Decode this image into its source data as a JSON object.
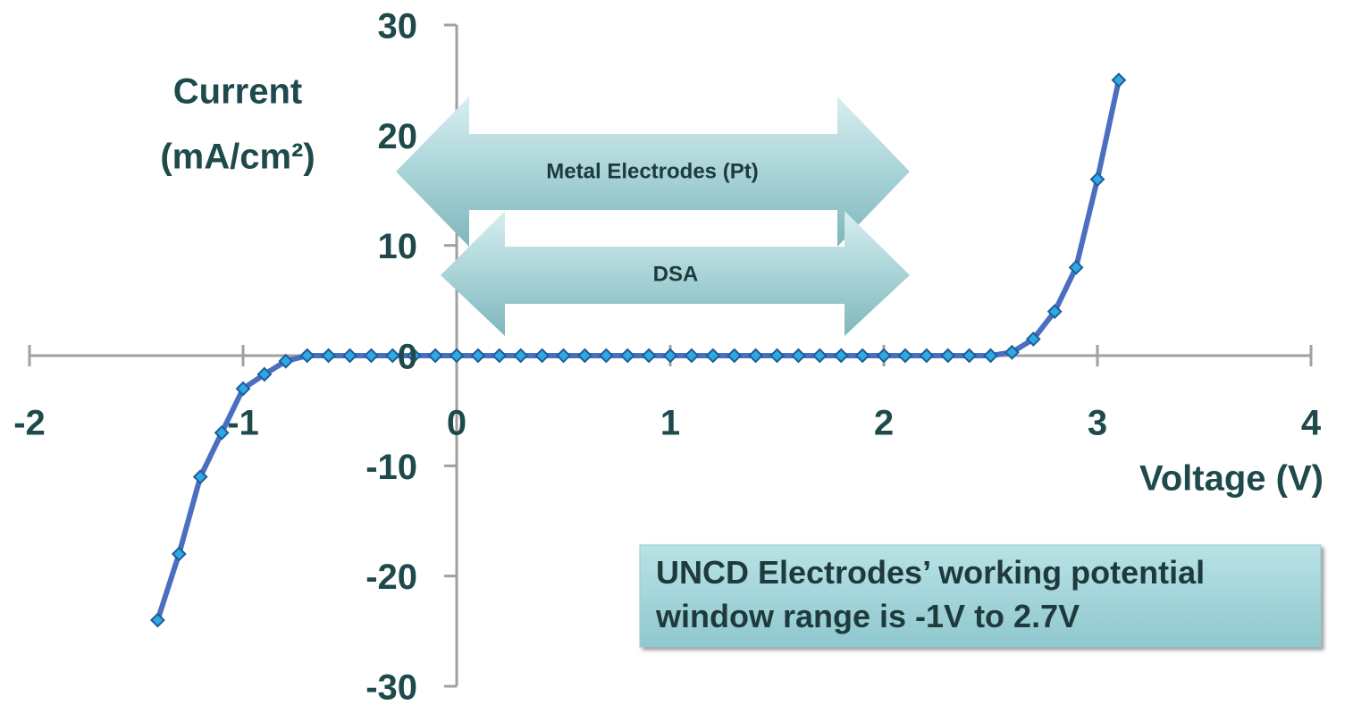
{
  "chart_data": {
    "type": "line",
    "xlabel": "Voltage (V)",
    "ylabel": [
      "Current",
      "(mA/cm²)"
    ],
    "annotations": [
      "Metal Electrodes (Pt)",
      "DSA"
    ],
    "note": [
      "UNCD Electrodes’ working potential",
      "window range is -1V to 2.7V"
    ],
    "xlim": [
      -2,
      4
    ],
    "xticks": [
      -2,
      -1,
      0,
      1,
      2,
      3,
      4
    ],
    "ylim": [
      -30,
      30
    ],
    "yticks": [
      -30,
      -20,
      -10,
      0,
      10,
      20,
      30
    ],
    "series": [
      {
        "color": "#4a6fc0",
        "marker_color": "#2fa9e2",
        "x": [
          -1.4,
          -1.3,
          -1.2,
          -1.1,
          -1.0,
          -0.9,
          -0.8,
          -0.7,
          -0.6,
          -0.5,
          -0.4,
          -0.3,
          -0.2,
          -0.1,
          0,
          0.1,
          0.2,
          0.3,
          0.4,
          0.5,
          0.6,
          0.7,
          0.8,
          0.9,
          1.0,
          1.1,
          1.2,
          1.3,
          1.4,
          1.5,
          1.6,
          1.7,
          1.8,
          1.9,
          2.0,
          2.1,
          2.2,
          2.3,
          2.4,
          2.5,
          2.6,
          2.7,
          2.8,
          2.9,
          3.0,
          3.1
        ],
        "values": [
          -24,
          -18,
          -11,
          -7,
          -3,
          -1.7,
          -0.5,
          0,
          0,
          0,
          0,
          0,
          0,
          0,
          0,
          0,
          0,
          0,
          0,
          0,
          0,
          0,
          0,
          0,
          0,
          0,
          0,
          0,
          0,
          0,
          0,
          0,
          0,
          0,
          0,
          0,
          0,
          0,
          0,
          0,
          0.3,
          1.5,
          4,
          8,
          16,
          25
        ]
      }
    ]
  }
}
